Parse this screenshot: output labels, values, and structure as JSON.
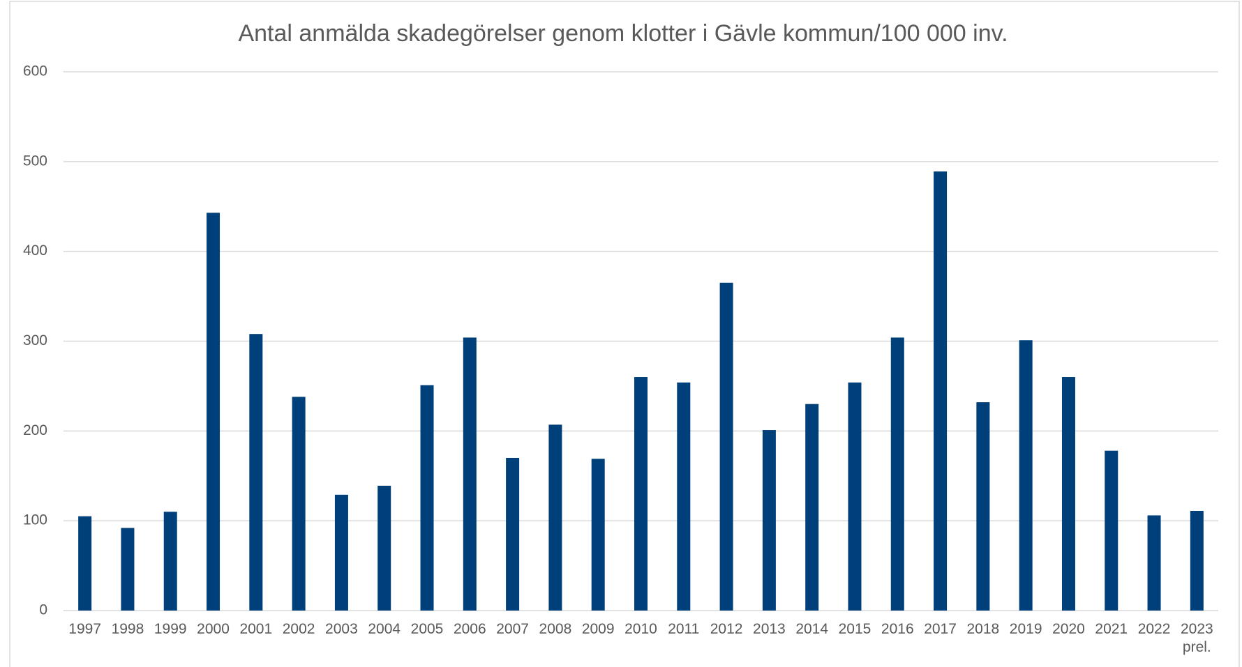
{
  "chart_data": {
    "type": "bar",
    "title": "Antal anmälda skadegörelser genom klotter i Gävle kommun/100 000 inv.",
    "categories": [
      "1997",
      "1998",
      "1999",
      "2000",
      "2001",
      "2002",
      "2003",
      "2004",
      "2005",
      "2006",
      "2007",
      "2008",
      "2009",
      "2010",
      "2011",
      "2012",
      "2013",
      "2014",
      "2015",
      "2016",
      "2017",
      "2018",
      "2019",
      "2020",
      "2021",
      "2022",
      "2023 prel."
    ],
    "values": [
      105,
      92,
      110,
      443,
      308,
      238,
      129,
      139,
      251,
      304,
      170,
      207,
      169,
      260,
      254,
      365,
      201,
      230,
      254,
      304,
      489,
      232,
      301,
      260,
      178,
      106,
      111
    ],
    "color": "#00407a",
    "ylim": [
      0,
      600
    ],
    "yticks": [
      0,
      100,
      200,
      300,
      400,
      500,
      600
    ],
    "grid": true
  }
}
